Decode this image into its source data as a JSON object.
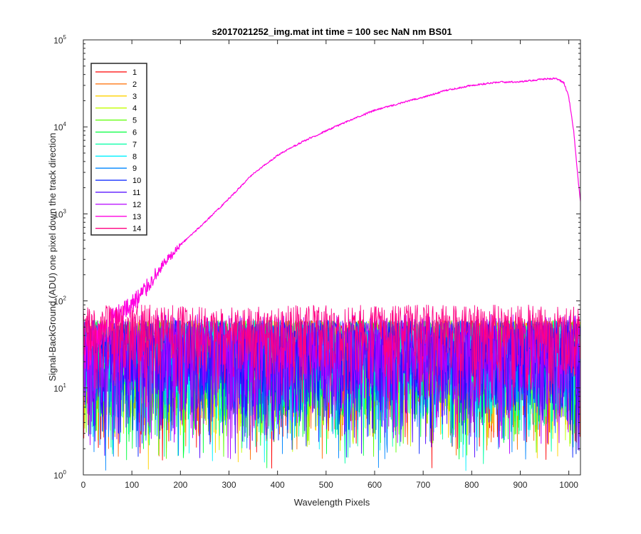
{
  "chart_data": {
    "type": "line",
    "title": "s2017021252_img.mat int time = 100 sec  NaN nm BS01",
    "xlabel": "Wavelength Pixels",
    "ylabel": "Signal-BackGround (ADU) one pixel down the track direction",
    "xlim": [
      0,
      1024
    ],
    "ylim": [
      1,
      100000
    ],
    "yscale": "log",
    "grid": false,
    "legend_location": "top-left",
    "x_ticks": [
      "0",
      "100",
      "200",
      "300",
      "400",
      "500",
      "600",
      "700",
      "800",
      "900",
      "1000"
    ],
    "y_ticks": [
      {
        "base": "10",
        "exp": "0"
      },
      {
        "base": "10",
        "exp": "1"
      },
      {
        "base": "10",
        "exp": "2"
      },
      {
        "base": "10",
        "exp": "3"
      },
      {
        "base": "10",
        "exp": "4"
      },
      {
        "base": "10",
        "exp": "5"
      }
    ],
    "series": [
      {
        "name": "1",
        "color": "#ff0000",
        "profile": "noise",
        "noise_range": [
          1,
          60
        ]
      },
      {
        "name": "2",
        "color": "#ff6d00",
        "profile": "noise",
        "noise_range": [
          1,
          60
        ]
      },
      {
        "name": "3",
        "color": "#ffd200",
        "profile": "noise",
        "noise_range": [
          1,
          60
        ]
      },
      {
        "name": "4",
        "color": "#c3ff00",
        "profile": "noise",
        "noise_range": [
          1,
          60
        ]
      },
      {
        "name": "5",
        "color": "#5aff00",
        "profile": "noise",
        "noise_range": [
          1,
          60
        ]
      },
      {
        "name": "6",
        "color": "#00ff3c",
        "profile": "noise",
        "noise_range": [
          1,
          60
        ]
      },
      {
        "name": "7",
        "color": "#00ffa5",
        "profile": "noise",
        "noise_range": [
          1,
          60
        ]
      },
      {
        "name": "8",
        "color": "#00f0ff",
        "profile": "noise",
        "noise_range": [
          1,
          60
        ]
      },
      {
        "name": "9",
        "color": "#0087ff",
        "profile": "noise",
        "noise_range": [
          1,
          60
        ]
      },
      {
        "name": "10",
        "color": "#001eff",
        "profile": "noise",
        "noise_range": [
          1,
          60
        ]
      },
      {
        "name": "11",
        "color": "#4b00ff",
        "profile": "noise",
        "noise_range": [
          1,
          60
        ]
      },
      {
        "name": "12",
        "color": "#b400ff",
        "profile": "noise",
        "noise_range": [
          1,
          70
        ]
      },
      {
        "name": "13",
        "color": "#ff00e1",
        "profile": "signal",
        "x": [
          0,
          20,
          40,
          60,
          80,
          100,
          120,
          140,
          160,
          180,
          200,
          250,
          300,
          350,
          400,
          450,
          500,
          550,
          600,
          650,
          700,
          750,
          800,
          850,
          900,
          950,
          975,
          990,
          1000,
          1010,
          1020,
          1024
        ],
        "y": [
          22,
          30,
          38,
          55,
          70,
          90,
          120,
          170,
          240,
          320,
          440,
          800,
          1500,
          2900,
          4700,
          6700,
          9000,
          12000,
          15500,
          18500,
          22000,
          26500,
          30000,
          32500,
          33000,
          35500,
          36000,
          32000,
          22000,
          9000,
          2200,
          1400
        ]
      },
      {
        "name": "14",
        "color": "#ff0082",
        "profile": "noise",
        "noise_range": [
          4,
          90
        ]
      }
    ]
  }
}
